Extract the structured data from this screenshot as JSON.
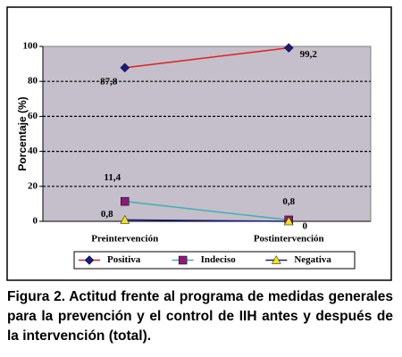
{
  "chart_data": {
    "type": "line",
    "y_label": "Porcentaje (%)",
    "categories": [
      "Preintervención",
      "Postintervención"
    ],
    "series": [
      {
        "name": "Positiva",
        "color": "#e02020",
        "marker": "diamond",
        "marker_color": "#1a1a80",
        "values": [
          87.8,
          99.2
        ],
        "value_labels": [
          "87,8",
          "99,2"
        ]
      },
      {
        "name": "Indeciso",
        "color": "#40b0b0",
        "marker": "square",
        "marker_color": "#8b1a7a",
        "values": [
          11.4,
          0.8
        ],
        "value_labels": [
          "11,4",
          "0,8"
        ]
      },
      {
        "name": "Negativa",
        "color": "#1a1a80",
        "marker": "triangle",
        "marker_color": "#f0e020",
        "values": [
          0.8,
          0
        ],
        "value_labels": [
          "0,8",
          "0"
        ]
      }
    ],
    "ylim": [
      0,
      100
    ],
    "yticks": [
      0,
      20,
      40,
      60,
      80,
      100
    ],
    "grid": true,
    "legend": "bottom",
    "caption": "Figura 2. Actitud frente al programa de medidas generales para la prevención y el control de IIH antes y después de la intervención (total)."
  }
}
